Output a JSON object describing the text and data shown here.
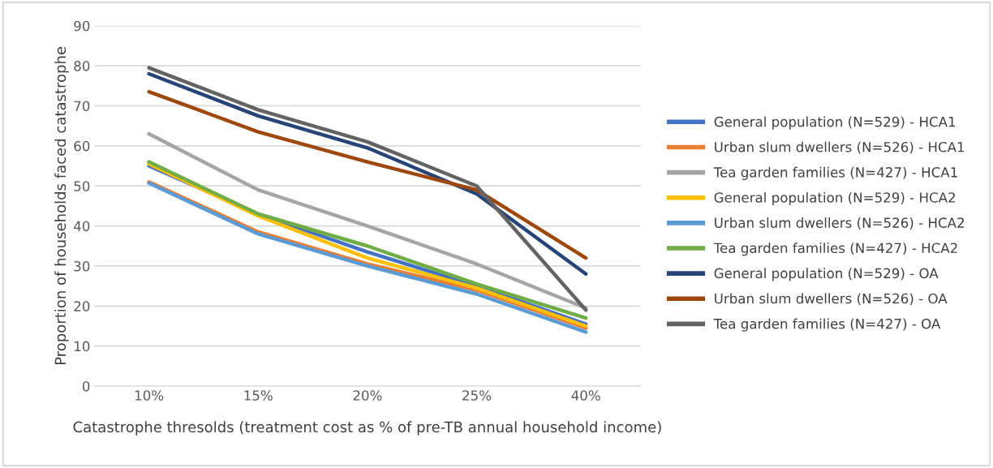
{
  "chart_data": {
    "type": "line",
    "xlabel": "Catastrophe thresolds (treatment cost as % of pre-TB annual household income)",
    "ylabel": "Proportion of households faced catastrophe",
    "categories": [
      "10%",
      "15%",
      "20%",
      "25%",
      "40%"
    ],
    "ylim": [
      0,
      90
    ],
    "yticks": [
      0,
      10,
      20,
      30,
      40,
      50,
      60,
      70,
      80,
      90
    ],
    "grid": "y",
    "legend": "right",
    "marker": "none",
    "line_style": "solid",
    "series": [
      {
        "name": "General population (N=529) - HCA1",
        "color": "#4472c4",
        "values": [
          55,
          43,
          33.5,
          25,
          15.5
        ]
      },
      {
        "name": "Urban slum dwellers (N=526) - HCA1",
        "color": "#ed7d31",
        "values": [
          51,
          38.5,
          30.5,
          24,
          14.5
        ]
      },
      {
        "name": "Tea garden families (N=427) - HCA1",
        "color": "#a5a5a5",
        "values": [
          63,
          49,
          40,
          30.5,
          19.5
        ]
      },
      {
        "name": "General population (N=529) - HCA2",
        "color": "#ffc000",
        "values": [
          55.5,
          42.5,
          32,
          24.5,
          15
        ]
      },
      {
        "name": "Urban slum dwellers (N=526) - HCA2",
        "color": "#5b9bd5",
        "values": [
          50.7,
          38,
          30,
          23,
          13.5
        ]
      },
      {
        "name": "Tea garden families (N=427) - HCA2",
        "color": "#70ad47",
        "values": [
          56,
          43,
          35,
          25.5,
          17
        ]
      },
      {
        "name": "General population (N=529) - OA",
        "color": "#264478",
        "values": [
          78,
          67.5,
          59.5,
          48,
          28
        ]
      },
      {
        "name": "Urban slum dwellers (N=526) - OA",
        "color": "#9e480e",
        "values": [
          73.5,
          63.5,
          56,
          49,
          32
        ]
      },
      {
        "name": "Tea garden families (N=427) - OA",
        "color": "#636363",
        "values": [
          79.5,
          69,
          61,
          50,
          19
        ]
      }
    ]
  }
}
